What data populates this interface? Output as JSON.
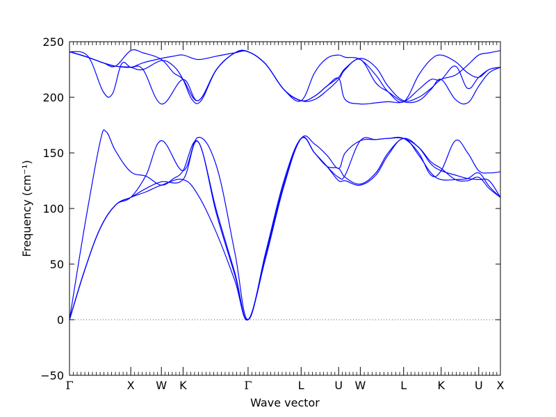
{
  "chart_data": {
    "type": "line",
    "title": "",
    "xlabel": "Wave vector",
    "ylabel": "Frequency (cm⁻¹)",
    "ylim": [
      -50,
      250
    ],
    "yticks": [
      "250",
      "200",
      "150",
      "100",
      "50",
      "0",
      "−50"
    ],
    "grid": false,
    "legend": "none",
    "line_color": "#0000ff",
    "zero_line_color": "#555555",
    "kpoints": [
      {
        "label": "Γ",
        "x": 0.0
      },
      {
        "label": "X",
        "x": 1.0
      },
      {
        "label": "W",
        "x": 1.5
      },
      {
        "label": "K",
        "x": 1.854
      },
      {
        "label": "Γ",
        "x": 2.915
      },
      {
        "label": "L",
        "x": 3.781
      },
      {
        "label": "U",
        "x": 4.393
      },
      {
        "label": "W",
        "x": 4.747
      },
      {
        "label": "L",
        "x": 5.454
      },
      {
        "label": "K",
        "x": 6.067
      },
      {
        "label": "U",
        "x": 6.68
      },
      {
        "label": "X",
        "x": 7.034
      }
    ],
    "bands": [
      {
        "x": [
          0,
          0.25,
          0.5,
          0.75,
          1.0,
          1.25,
          1.5,
          1.854,
          2.1,
          2.4,
          2.7,
          2.915,
          3.2,
          3.5,
          3.781,
          4.0,
          4.2,
          4.393,
          4.5,
          4.747,
          5.0,
          5.2,
          5.454,
          5.7,
          5.9,
          6.067,
          6.3,
          6.5,
          6.68,
          6.85,
          7.034
        ],
        "y": [
          0,
          45,
          82,
          103,
          110,
          115,
          121,
          126,
          112,
          78,
          35,
          0,
          55,
          120,
          163,
          150,
          138,
          125,
          125,
          121,
          130,
          148,
          163,
          148,
          132,
          126,
          126,
          127,
          132,
          120,
          110
        ]
      },
      {
        "x": [
          0,
          0.25,
          0.5,
          0.75,
          1.0,
          1.25,
          1.5,
          1.854,
          2.1,
          2.4,
          2.7,
          2.915,
          3.2,
          3.5,
          3.781,
          4.0,
          4.2,
          4.393,
          4.5,
          4.747,
          5.0,
          5.2,
          5.454,
          5.7,
          5.9,
          6.067,
          6.3,
          6.5,
          6.68,
          6.85,
          7.034
        ],
        "y": [
          0,
          45,
          82,
          103,
          110,
          118,
          124,
          126,
          160,
          95,
          40,
          0,
          58,
          122,
          163,
          150,
          138,
          136,
          128,
          122,
          132,
          150,
          163,
          155,
          142,
          136,
          126,
          125,
          128,
          118,
          110
        ]
      },
      {
        "x": [
          0,
          0.25,
          0.5,
          0.6,
          0.75,
          1.0,
          1.25,
          1.5,
          1.7,
          1.854,
          2.1,
          2.4,
          2.7,
          2.915,
          3.2,
          3.5,
          3.781,
          4.0,
          4.2,
          4.393,
          4.5,
          4.747,
          5.0,
          5.2,
          5.454,
          5.7,
          5.9,
          6.067,
          6.3,
          6.5,
          6.68,
          6.85,
          7.034
        ],
        "y": [
          0,
          85,
          160,
          169,
          152,
          133,
          129,
          121,
          127,
          134,
          160,
          98,
          42,
          0,
          58,
          122,
          163,
          158,
          148,
          136,
          150,
          161,
          162,
          163,
          163,
          150,
          130,
          134,
          161,
          150,
          134,
          132,
          133
        ]
      },
      {
        "x": [
          0,
          0.25,
          0.5,
          0.75,
          1.0,
          1.25,
          1.5,
          1.854,
          2.1,
          2.4,
          2.7,
          2.915,
          3.2,
          3.5,
          3.781,
          4.0,
          4.2,
          4.393,
          4.5,
          4.747,
          5.0,
          5.2,
          5.454,
          5.7,
          5.9,
          6.067,
          6.3,
          6.5,
          6.68,
          6.85,
          7.034
        ],
        "y": [
          0,
          45,
          82,
          103,
          110,
          130,
          161,
          134,
          164,
          138,
          60,
          0,
          60,
          125,
          163,
          150,
          138,
          128,
          130,
          161,
          162,
          163,
          163,
          155,
          140,
          134,
          130,
          127,
          126,
          125,
          110
        ]
      },
      {
        "x": [
          0,
          0.3,
          0.55,
          0.7,
          0.85,
          1.0,
          1.2,
          1.5,
          1.7,
          1.854,
          2.0,
          2.15,
          2.4,
          2.7,
          2.915,
          3.2,
          3.5,
          3.781,
          4.0,
          4.2,
          4.393,
          4.5,
          4.747,
          5.0,
          5.2,
          5.454,
          5.7,
          5.9,
          6.067,
          6.3,
          6.5,
          6.68,
          6.85,
          7.034
        ],
        "y": [
          241,
          237,
          205,
          203,
          230,
          227,
          225,
          233,
          228,
          216,
          198,
          197,
          225,
          240,
          241,
          230,
          207,
          197,
          201,
          210,
          218,
          226,
          235,
          227,
          210,
          197,
          200,
          208,
          216,
          220,
          229,
          238,
          240,
          242
        ]
      },
      {
        "x": [
          0,
          0.3,
          0.55,
          0.75,
          1.0,
          1.2,
          1.5,
          1.854,
          2.1,
          2.4,
          2.7,
          2.915,
          3.2,
          3.5,
          3.781,
          4.0,
          4.2,
          4.393,
          4.5,
          4.747,
          5.0,
          5.2,
          5.454,
          5.7,
          5.9,
          6.067,
          6.3,
          6.5,
          6.68,
          6.85,
          7.034
        ],
        "y": [
          241,
          236,
          231,
          228,
          227,
          225,
          194,
          216,
          197,
          225,
          240,
          241,
          230,
          207,
          197,
          201,
          210,
          217,
          198,
          194,
          195,
          196,
          196,
          207,
          216,
          216,
          228,
          208,
          218,
          225,
          227
        ]
      },
      {
        "x": [
          0,
          0.3,
          0.55,
          0.75,
          1.0,
          1.2,
          1.5,
          1.7,
          1.854,
          2.1,
          2.4,
          2.7,
          2.915,
          3.2,
          3.5,
          3.781,
          4.0,
          4.2,
          4.393,
          4.5,
          4.747,
          5.0,
          5.2,
          5.454,
          5.7,
          5.9,
          6.067,
          6.3,
          6.5,
          6.68,
          6.85,
          7.034
        ],
        "y": [
          241,
          236,
          231,
          228,
          227,
          231,
          235,
          237,
          238,
          234,
          237,
          240,
          241,
          230,
          207,
          197,
          222,
          235,
          238,
          236,
          234,
          220,
          205,
          196,
          220,
          234,
          238,
          232,
          222,
          218,
          225,
          227
        ]
      },
      {
        "x": [
          0,
          0.3,
          0.55,
          0.75,
          1.0,
          1.2,
          1.5,
          1.7,
          1.854,
          2.1,
          2.4,
          2.7,
          2.915,
          3.2,
          3.5,
          3.781,
          4.0,
          4.2,
          4.393,
          4.5,
          4.747,
          5.0,
          5.2,
          5.454,
          5.7,
          5.9,
          6.067,
          6.3,
          6.5,
          6.68,
          6.85,
          7.034
        ],
        "y": [
          241,
          236,
          231,
          228,
          242,
          240,
          234,
          222,
          216,
          197,
          225,
          240,
          241,
          230,
          207,
          197,
          198,
          206,
          216,
          225,
          234,
          213,
          205,
          196,
          197,
          207,
          216,
          198,
          195,
          210,
          222,
          227
        ]
      }
    ]
  }
}
